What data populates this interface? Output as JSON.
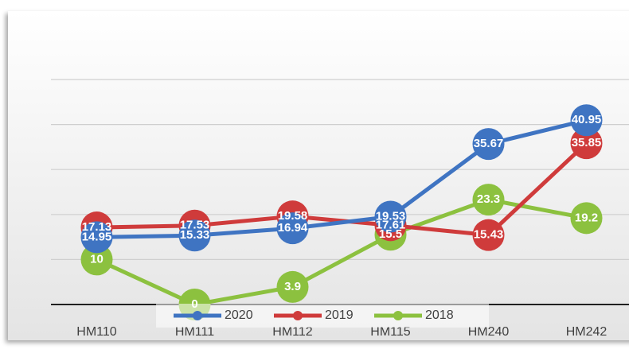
{
  "chart_data": {
    "type": "line",
    "categories": [
      "HM110",
      "HM111",
      "HM112",
      "HM115",
      "HM240",
      "HM242"
    ],
    "series": [
      {
        "name": "2020",
        "color": "#3f74c2",
        "values": [
          14.95,
          15.33,
          16.94,
          19.53,
          35.67,
          40.95
        ]
      },
      {
        "name": "2019",
        "color": "#cf3b3b",
        "values": [
          17.13,
          17.53,
          19.58,
          17.61,
          15.43,
          35.85
        ]
      },
      {
        "name": "2018",
        "color": "#8cc13f",
        "values": [
          10,
          0,
          3.9,
          15.5,
          23.3,
          19.2
        ]
      }
    ],
    "ylim": [
      0,
      50
    ],
    "yticks": [
      0,
      10,
      20,
      30,
      40,
      50
    ],
    "grid": true,
    "legend": "bottom"
  }
}
